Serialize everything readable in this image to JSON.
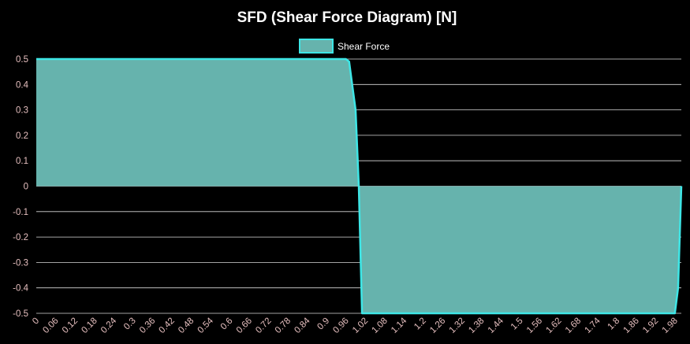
{
  "chart_data": {
    "type": "area",
    "title": "SFD (Shear Force Diagram) [N]",
    "xlabel": "",
    "ylabel": "",
    "x_ticks": [
      "0",
      "0.06",
      "0.12",
      "0.18",
      "0.24",
      "0.3",
      "0.36",
      "0.42",
      "0.48",
      "0.54",
      "0.6",
      "0.66",
      "0.72",
      "0.78",
      "0.84",
      "0.9",
      "0.96",
      "1.02",
      "1.08",
      "1.14",
      "1.2",
      "1.26",
      "1.32",
      "1.38",
      "1.44",
      "1.5",
      "1.56",
      "1.62",
      "1.68",
      "1.74",
      "1.8",
      "1.86",
      "1.92",
      "1.98"
    ],
    "y_ticks": [
      "0.5",
      "0.4",
      "0.3",
      "0.2",
      "0.1",
      "0",
      "-0.1",
      "-0.2",
      "-0.3",
      "-0.4",
      "-0.5"
    ],
    "xlim": [
      0,
      2
    ],
    "ylim": [
      -0.5,
      0.5
    ],
    "grid": true,
    "legend_position": "top-center",
    "series": [
      {
        "name": "Shear Force",
        "x": [
          0,
          0.96,
          0.97,
          0.99,
          1.0,
          1.01,
          1.98,
          1.99,
          2.0
        ],
        "values": [
          0.5,
          0.5,
          0.49,
          0.3,
          0.0,
          -0.5,
          -0.5,
          -0.4,
          0.0
        ]
      }
    ]
  },
  "colors": {
    "background": "#000000",
    "title": "#ffffff",
    "tick": "#e6bfbf",
    "grid": "#d9d9d9",
    "line": "#3ee6e6",
    "fill": "#66b3ad",
    "legend_text": "#ffffff"
  }
}
